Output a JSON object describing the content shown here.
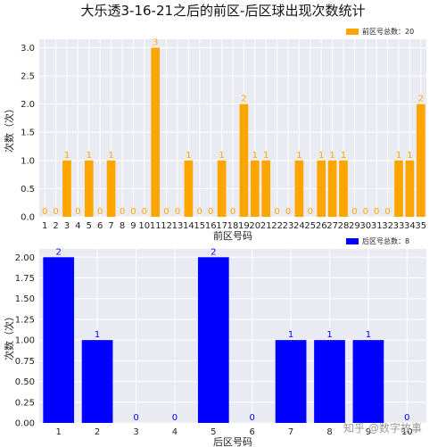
{
  "title": "大乐透3-16-21之后的前区-后区球出现次数统计",
  "watermark": "知乎 @数字故事",
  "colors": {
    "front": "#FFA500",
    "back": "#0000FF",
    "panel": "#EAEAF2",
    "grid": "#FFFFFF"
  },
  "chart_data": [
    {
      "type": "bar",
      "categories": [
        "1",
        "2",
        "3",
        "4",
        "5",
        "6",
        "7",
        "8",
        "9",
        "10",
        "11",
        "12",
        "13",
        "14",
        "15",
        "16",
        "17",
        "18",
        "19",
        "20",
        "21",
        "22",
        "23",
        "24",
        "25",
        "26",
        "27",
        "28",
        "29",
        "30",
        "31",
        "32",
        "33",
        "34",
        "35"
      ],
      "values": [
        0,
        0,
        1,
        0,
        1,
        0,
        1,
        0,
        0,
        0,
        3,
        0,
        0,
        1,
        0,
        0,
        1,
        0,
        2,
        1,
        1,
        0,
        0,
        1,
        0,
        1,
        1,
        1,
        0,
        0,
        0,
        0,
        1,
        1,
        2
      ],
      "xlabel": "前区号码",
      "ylabel": "次数（次）",
      "ylim": [
        0,
        3.15
      ],
      "yticks": [
        "0.0",
        "0.5",
        "1.0",
        "1.5",
        "2.0",
        "2.5",
        "3.0"
      ],
      "legend": {
        "label": "前区号总数：20",
        "position": "top-right"
      },
      "grid": true
    },
    {
      "type": "bar",
      "categories": [
        "1",
        "2",
        "3",
        "4",
        "5",
        "6",
        "7",
        "8",
        "9",
        "10"
      ],
      "values": [
        2,
        1,
        0,
        0,
        2,
        0,
        1,
        1,
        1,
        0
      ],
      "xlabel": "后区号码",
      "ylabel": "次数（次）",
      "ylim": [
        0,
        2.1
      ],
      "yticks": [
        "0.00",
        "0.25",
        "0.50",
        "0.75",
        "1.00",
        "1.25",
        "1.50",
        "1.75",
        "2.00"
      ],
      "legend": {
        "label": "后区号总数：8",
        "position": "top-right"
      },
      "grid": true
    }
  ]
}
